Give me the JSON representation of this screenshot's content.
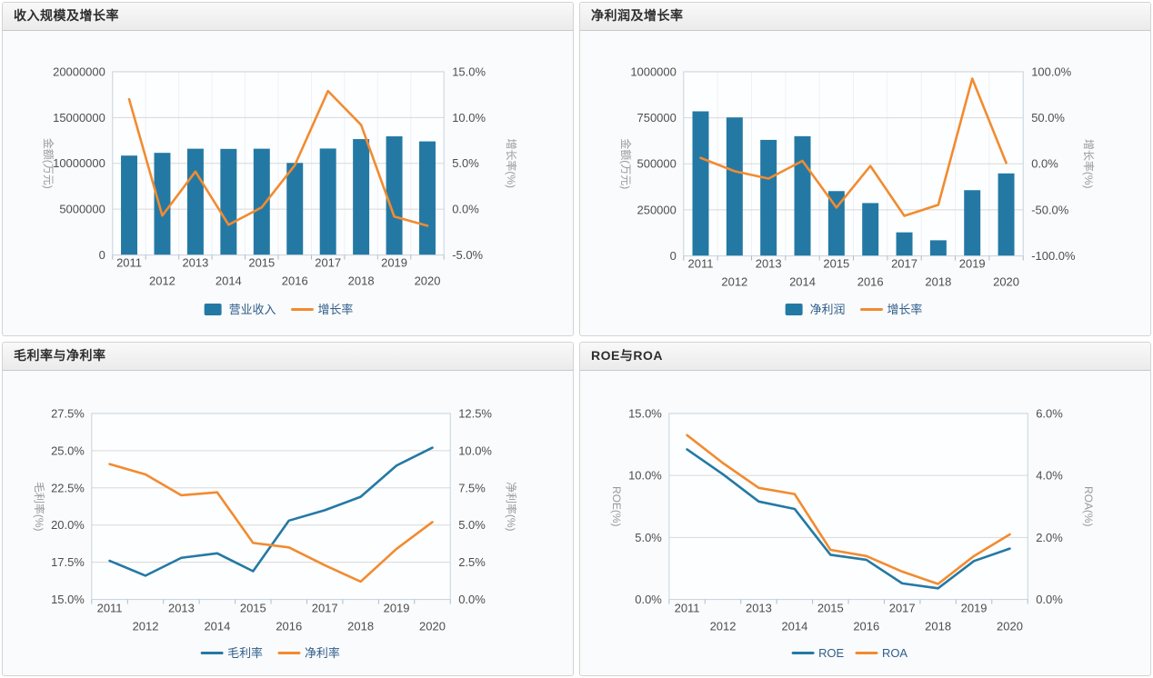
{
  "colors": {
    "series_blue": "#2479A4",
    "series_orange": "#F28B30",
    "legend_text": "#2F5D8A",
    "tick_text": "#4D4D4D",
    "axis_name_text": "#999999"
  },
  "chart_data": [
    {
      "type": "bar+line",
      "title": "收入规模及增长率",
      "categories": [
        "2011",
        "2012",
        "2013",
        "2014",
        "2015",
        "2016",
        "2017",
        "2018",
        "2019",
        "2020"
      ],
      "series": [
        {
          "name": "营业收入",
          "type": "bar",
          "axis": "left",
          "color_key": "series_blue",
          "values": [
            10850000,
            11150000,
            11600000,
            11580000,
            11600000,
            10050000,
            11620000,
            12650000,
            12950000,
            12400000
          ]
        },
        {
          "name": "增长率",
          "type": "line",
          "axis": "right",
          "color_key": "series_orange",
          "values": [
            12.0,
            -0.7,
            4.1,
            -1.7,
            0.2,
            4.8,
            12.9,
            9.2,
            -0.8,
            -1.8
          ]
        }
      ],
      "left_axis": {
        "name": "金额(万元)",
        "min": 0,
        "max": 20000000,
        "tick_labels": [
          "0",
          "5000000",
          "10000000",
          "15000000",
          "20000000"
        ]
      },
      "right_axis": {
        "name": "增长率(%)",
        "min": -5,
        "max": 15,
        "tick_labels": [
          "-5.0%",
          "0.0%",
          "5.0%",
          "10.0%",
          "15.0%"
        ]
      },
      "legend": [
        "营业收入",
        "增长率"
      ],
      "legend_position": "bottom-center",
      "grid": true
    },
    {
      "type": "bar+line",
      "title": "净利润及增长率",
      "categories": [
        "2011",
        "2012",
        "2013",
        "2014",
        "2015",
        "2016",
        "2017",
        "2018",
        "2019",
        "2020"
      ],
      "series": [
        {
          "name": "净利润",
          "type": "bar",
          "axis": "left",
          "color_key": "series_blue",
          "values": [
            785000,
            752000,
            630000,
            650000,
            352000,
            287000,
            128000,
            85000,
            357000,
            448000
          ]
        },
        {
          "name": "增长率",
          "type": "line",
          "axis": "right",
          "color_key": "series_orange",
          "values": [
            6.5,
            -8.0,
            -16.0,
            3.2,
            -47.5,
            -2.3,
            -56.5,
            -44.5,
            92.5,
            1.0
          ]
        }
      ],
      "left_axis": {
        "name": "金额(万元)",
        "min": 0,
        "max": 1000000,
        "tick_labels": [
          "0",
          "250000",
          "500000",
          "750000",
          "1000000"
        ]
      },
      "right_axis": {
        "name": "增长率(%)",
        "min": -100,
        "max": 100,
        "tick_labels": [
          "-100.0%",
          "-50.0%",
          "0.0%",
          "50.0%",
          "100.0%"
        ]
      },
      "legend": [
        "净利润",
        "增长率"
      ],
      "legend_position": "bottom-center",
      "grid": true
    },
    {
      "type": "line",
      "title": "毛利率与净利率",
      "categories": [
        "2011",
        "2012",
        "2013",
        "2014",
        "2015",
        "2016",
        "2017",
        "2018",
        "2019",
        "2020"
      ],
      "series": [
        {
          "name": "毛利率",
          "type": "line",
          "axis": "left",
          "color_key": "series_blue",
          "values": [
            17.6,
            16.6,
            17.8,
            18.1,
            16.9,
            20.3,
            21.0,
            21.9,
            24.0,
            25.2
          ]
        },
        {
          "name": "净利率",
          "type": "line",
          "axis": "right",
          "color_key": "series_orange",
          "values": [
            9.1,
            8.4,
            7.0,
            7.2,
            3.8,
            3.5,
            2.3,
            1.2,
            3.4,
            5.2
          ]
        }
      ],
      "left_axis": {
        "name": "毛利率(%)",
        "min": 15,
        "max": 27.5,
        "tick_labels": [
          "15.0%",
          "17.5%",
          "20.0%",
          "22.5%",
          "25.0%",
          "27.5%"
        ]
      },
      "right_axis": {
        "name": "净利率(%)",
        "min": 0,
        "max": 12.5,
        "tick_labels": [
          "0.0%",
          "2.5%",
          "5.0%",
          "7.5%",
          "10.0%",
          "12.5%"
        ]
      },
      "legend": [
        "毛利率",
        "净利率"
      ],
      "legend_position": "bottom-center",
      "grid": true
    },
    {
      "type": "line",
      "title": "ROE与ROA",
      "categories": [
        "2011",
        "2012",
        "2013",
        "2014",
        "2015",
        "2016",
        "2017",
        "2018",
        "2019",
        "2020"
      ],
      "series": [
        {
          "name": "ROE",
          "type": "line",
          "axis": "left",
          "color_key": "series_blue",
          "values": [
            12.1,
            10.1,
            7.9,
            7.3,
            3.6,
            3.2,
            1.3,
            0.9,
            3.1,
            4.1
          ]
        },
        {
          "name": "ROA",
          "type": "line",
          "axis": "right",
          "color_key": "series_orange",
          "values": [
            5.3,
            4.4,
            3.6,
            3.4,
            1.6,
            1.4,
            0.9,
            0.5,
            1.4,
            2.1
          ]
        }
      ],
      "left_axis": {
        "name": "ROE(%)",
        "min": 0,
        "max": 15,
        "tick_labels": [
          "0.0%",
          "5.0%",
          "10.0%",
          "15.0%"
        ]
      },
      "right_axis": {
        "name": "ROA(%)",
        "min": 0,
        "max": 6,
        "tick_labels": [
          "0.0%",
          "2.0%",
          "4.0%",
          "6.0%"
        ]
      },
      "legend": [
        "ROE",
        "ROA"
      ],
      "legend_position": "bottom-center",
      "grid": true
    }
  ]
}
